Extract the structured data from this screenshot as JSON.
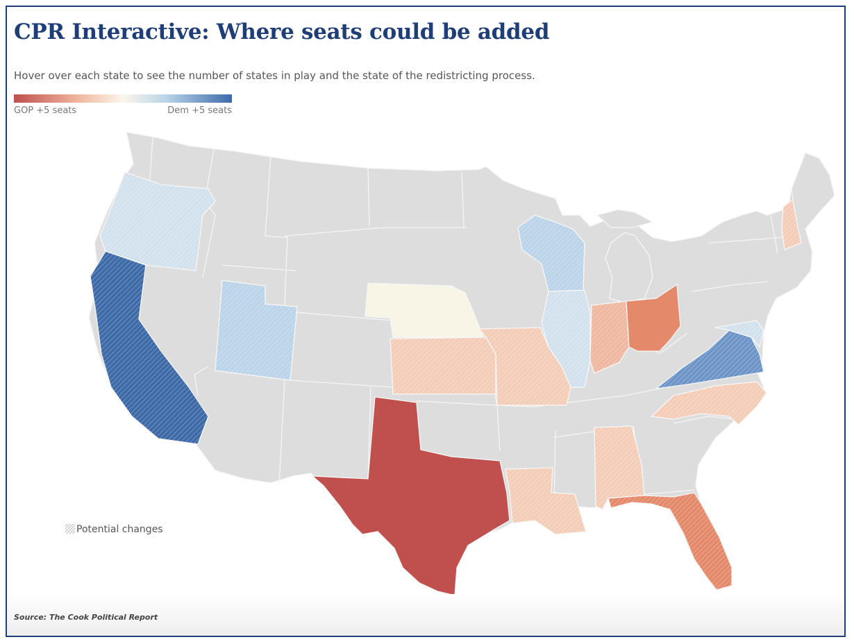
{
  "title": "CPR Interactive: Where seats could be added",
  "subtitle": "Hover over each state to see the number of states in play and the state of the redistricting process.",
  "legend": {
    "left_label": "GOP +5 seats",
    "right_label": "Dem +5 seats"
  },
  "potential_changes_label": "Potential changes",
  "source": "Source: The Cook Political Report",
  "colors": {
    "frame": "#1f3e78",
    "title": "#1f3e78",
    "neutral_state": "#dddddd",
    "state_border": "#f7f7f7",
    "gop_strong": "#c0504d",
    "dem_strong": "#3d6aaa"
  }
}
